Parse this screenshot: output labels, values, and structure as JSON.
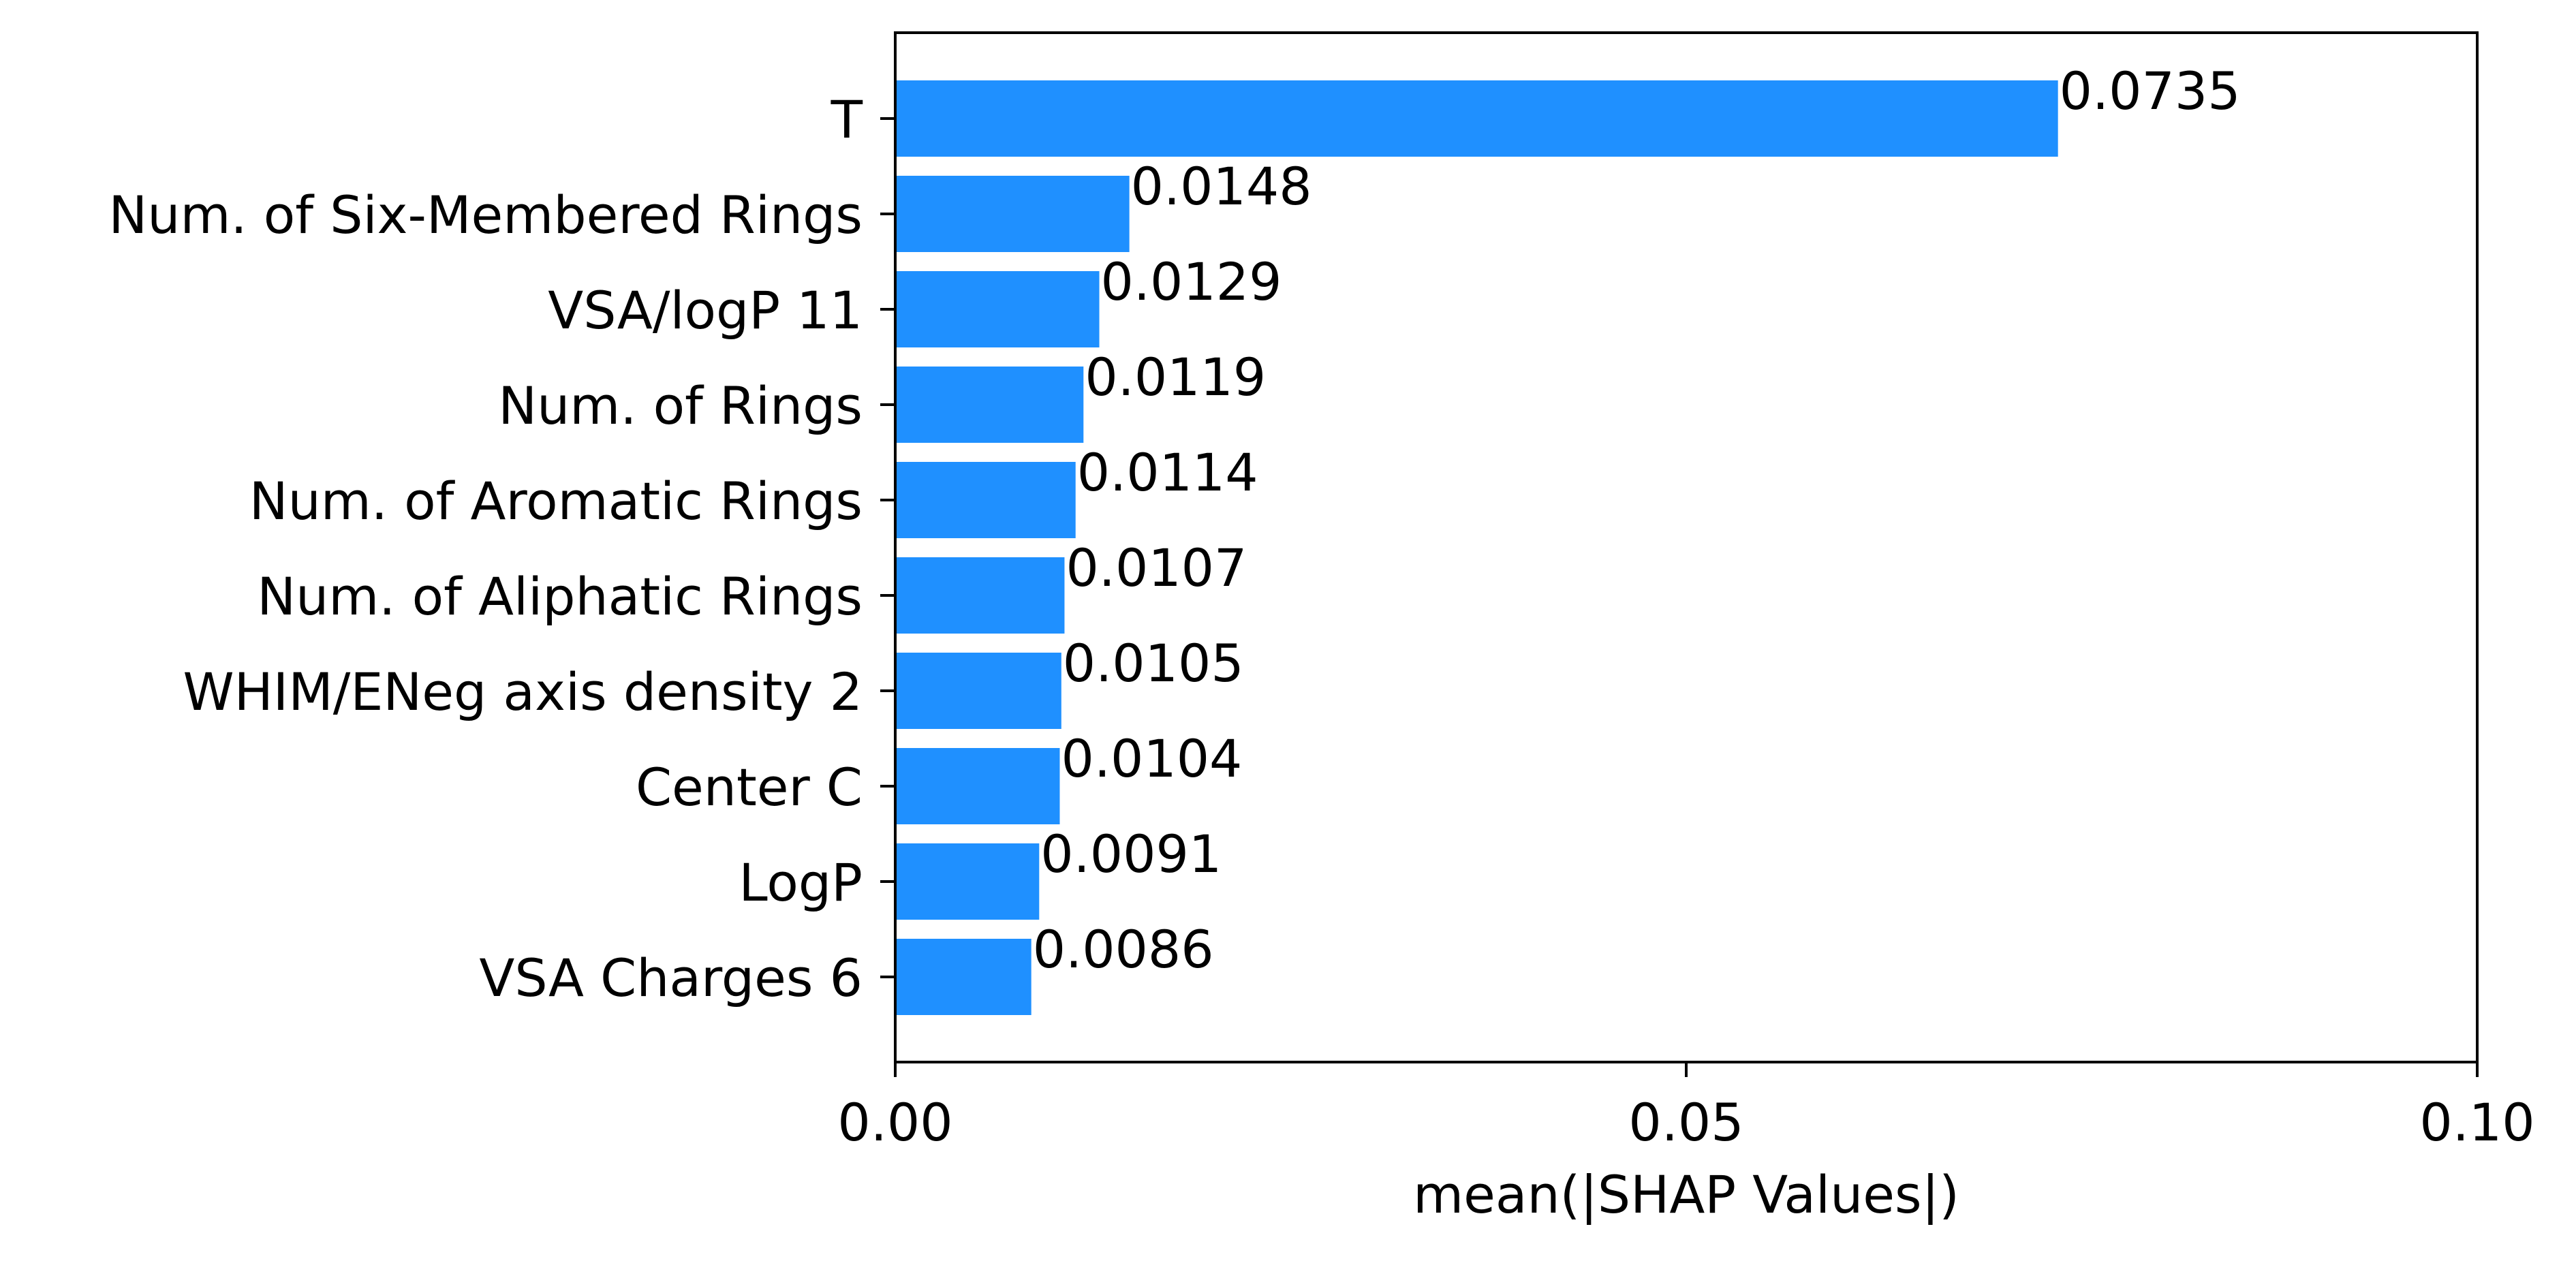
{
  "chart_data": {
    "type": "bar",
    "orientation": "horizontal",
    "categories": [
      "T",
      "Num. of Six-Membered Rings",
      "VSA/logP 11",
      "Num. of Rings",
      "Num. of Aromatic Rings",
      "Num. of Aliphatic Rings",
      "WHIM/ENeg axis density 2",
      "Center C",
      "LogP",
      "VSA Charges 6"
    ],
    "values": [
      0.0735,
      0.0148,
      0.0129,
      0.0119,
      0.0114,
      0.0107,
      0.0105,
      0.0104,
      0.0091,
      0.0086
    ],
    "value_labels": [
      "0.0735",
      "0.0148",
      "0.0129",
      "0.0119",
      "0.0114",
      "0.0107",
      "0.0105",
      "0.0104",
      "0.0091",
      "0.0086"
    ],
    "xlabel": "mean(|SHAP Values|)",
    "ylabel": "",
    "xlim": [
      0,
      0.1
    ],
    "xticks": [
      0,
      0.05,
      0.1
    ],
    "xtick_labels": [
      "0.00",
      "0.05",
      "0.10"
    ],
    "grid": false,
    "bar_color": "#1f90ff"
  }
}
